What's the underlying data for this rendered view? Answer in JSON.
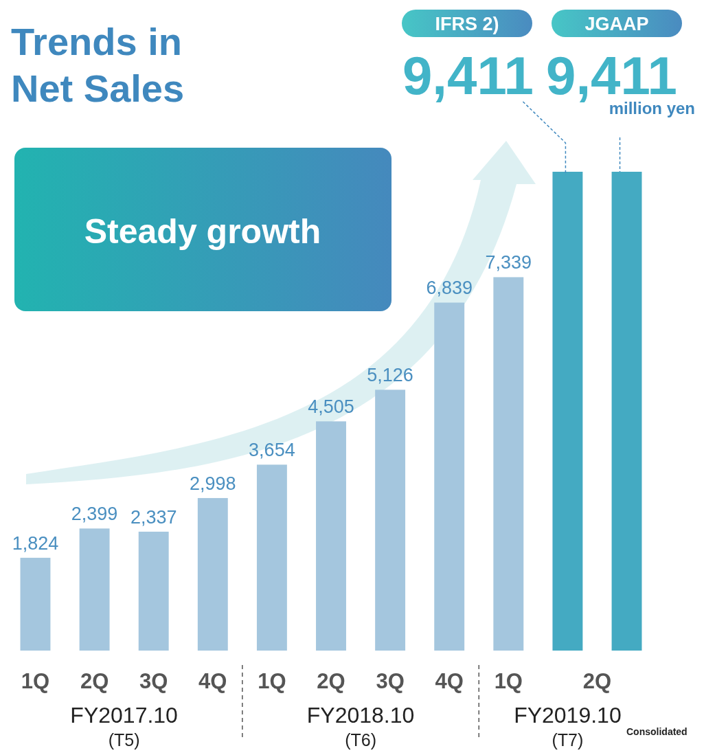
{
  "chart_data": {
    "type": "bar",
    "title": "Trends in Net Sales",
    "categories": [
      "1Q",
      "2Q",
      "3Q",
      "4Q",
      "1Q",
      "2Q",
      "3Q",
      "4Q",
      "1Q",
      "2Q",
      null
    ],
    "values": [
      1824,
      2399,
      2337,
      2998,
      3654,
      4505,
      5126,
      6839,
      7339,
      9411,
      9411
    ],
    "colors": [
      "#a4c6de",
      "#a4c6de",
      "#a4c6de",
      "#a4c6de",
      "#a4c6de",
      "#a4c6de",
      "#a4c6de",
      "#a4c6de",
      "#a4c6de",
      "#44aac2",
      "#44aac2"
    ],
    "value_labels": [
      "1,824",
      "2,399",
      "2,337",
      "2,998",
      "3,654",
      "4,505",
      "5,126",
      "6,839",
      "7,339",
      "9,411",
      "9,411"
    ],
    "annotations": [
      "FY2017.10",
      "(T5)",
      "FY2018.10",
      "(T6)",
      "FY2019.10",
      "(T7)",
      "Consolidated",
      "Steady growth",
      "IFRS 2)",
      "JGAAP",
      "million yen"
    ]
  }
}
